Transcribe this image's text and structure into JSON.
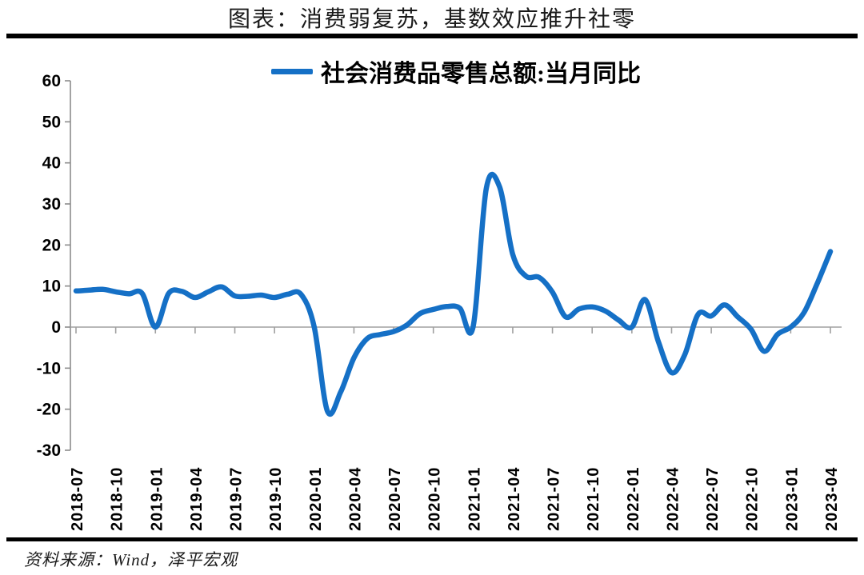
{
  "title": "图表：消费弱复苏，基数效应推升社零",
  "source": "资料来源：Wind，泽平宏观",
  "colors": {
    "line": "#1570C6",
    "axis": "#8C8C8C",
    "zero_line": "#A0A0A0",
    "rule": "#000000",
    "text": "#000000"
  },
  "chart_data": {
    "type": "line",
    "title": "图表：消费弱复苏，基数效应推升社零",
    "legend_position": "top-center",
    "grid": "zero-line-only",
    "ylim": [
      -30,
      60
    ],
    "yticks": [
      60,
      50,
      40,
      30,
      20,
      10,
      0,
      -10,
      -20,
      -30
    ],
    "x_start": "2018-07",
    "x_end": "2023-04",
    "months_between_ticks": 3,
    "x_tick_labels": [
      "2018-07",
      "2018-10",
      "2019-01",
      "2019-04",
      "2019-07",
      "2019-10",
      "2020-01",
      "2020-04",
      "2020-07",
      "2020-10",
      "2021-01",
      "2021-04",
      "2021-07",
      "2021-10",
      "2022-01",
      "2022-04",
      "2022-07",
      "2022-10",
      "2023-01",
      "2023-04"
    ],
    "series": [
      {
        "name": "社会消费品零售总额:当月同比",
        "color": "#1570C6",
        "values": [
          8.8,
          9.0,
          9.2,
          8.6,
          8.1,
          8.2,
          0.0,
          8.2,
          8.7,
          7.2,
          8.6,
          9.8,
          7.6,
          7.5,
          7.8,
          7.2,
          8.0,
          8.0,
          0.0,
          -20.5,
          -15.8,
          -7.5,
          -2.8,
          -1.8,
          -1.1,
          0.5,
          3.3,
          4.3,
          5.0,
          4.6,
          0.0,
          33.8,
          34.2,
          17.7,
          12.4,
          12.1,
          8.5,
          2.5,
          4.4,
          4.9,
          3.9,
          1.7,
          0.0,
          6.7,
          -3.5,
          -11.1,
          -6.7,
          3.1,
          2.7,
          5.4,
          2.5,
          -0.5,
          -5.9,
          -1.8,
          0.0,
          3.5,
          10.6,
          18.4
        ]
      }
    ]
  }
}
